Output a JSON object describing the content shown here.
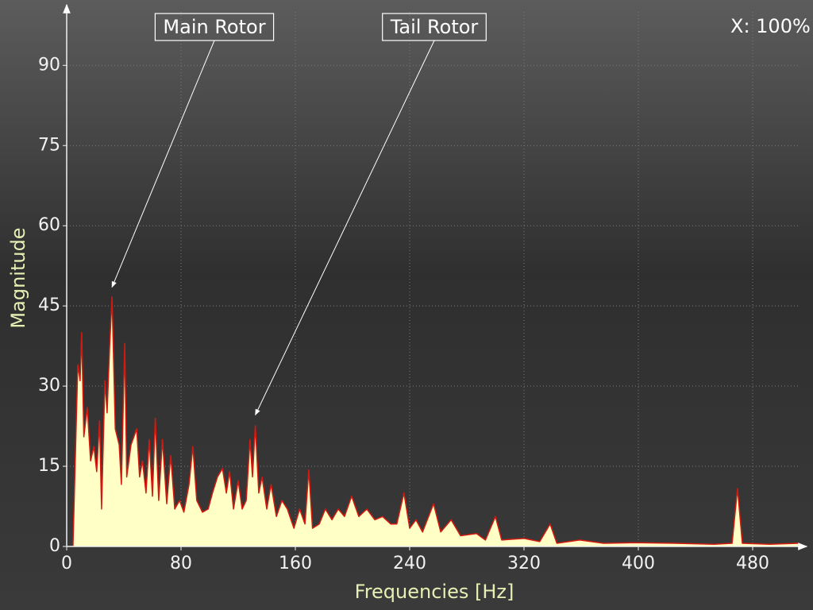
{
  "chart_data": {
    "type": "area",
    "x_label": "Frequencies [Hz]",
    "y_label": "Magnitude",
    "zoom_label": "X: 100%",
    "xlim": [
      0,
      512
    ],
    "ylim": [
      0,
      100
    ],
    "xticks": [
      0,
      80,
      160,
      240,
      320,
      400,
      480
    ],
    "yticks": [
      0,
      15,
      30,
      45,
      60,
      75,
      90
    ],
    "grid": true,
    "color": "#d41a10",
    "fill_color": "#ffffc6",
    "x": [
      4.4,
      7.8,
      9.4,
      10.5,
      12,
      14.4,
      16.7,
      19,
      21,
      23,
      24.4,
      26.7,
      28.3,
      30,
      31.7,
      34,
      36.7,
      38.3,
      40.6,
      42,
      45,
      49,
      51,
      53,
      55.5,
      57.8,
      60,
      62,
      64.4,
      67,
      70,
      72.8,
      75.6,
      79,
      82,
      85.6,
      88.3,
      91,
      95,
      99,
      102,
      105.5,
      109,
      111.7,
      114,
      116.7,
      120,
      122.8,
      125.6,
      128.3,
      130,
      132,
      134.4,
      136.7,
      140,
      143,
      146.7,
      150.6,
      154.4,
      159,
      163,
      166.7,
      169.4,
      172,
      176.7,
      181,
      185.6,
      190,
      194.4,
      199.4,
      204.4,
      210,
      215.6,
      221,
      226.7,
      231,
      236,
      240,
      244.4,
      249,
      256.7,
      261.7,
      269,
      275.6,
      286.7,
      293,
      300,
      304.4,
      320,
      331,
      338.3,
      343,
      359,
      375.6,
      397.8,
      425.6,
      453,
      465.6,
      469.4,
      472.8,
      492,
      511.7
    ],
    "values": [
      0,
      34,
      31,
      40,
      20.5,
      26,
      16,
      18.7,
      14,
      23.5,
      7,
      31,
      25,
      37,
      46.7,
      22,
      19,
      11.6,
      38,
      13,
      19,
      22,
      13,
      16,
      10,
      20,
      9.4,
      24,
      8.6,
      20,
      8,
      17,
      7,
      8.6,
      6.4,
      11.6,
      18.7,
      8.6,
      6.4,
      7,
      10,
      13,
      14.6,
      10,
      14,
      7,
      12.3,
      7,
      8.6,
      20,
      13,
      22.6,
      10,
      13,
      7,
      11.6,
      5.6,
      8.6,
      7,
      3.4,
      7,
      4.2,
      14.3,
      3.4,
      4.2,
      7,
      5,
      7,
      5.6,
      9.4,
      5.6,
      7,
      5,
      5.6,
      4.2,
      4.2,
      10,
      3.4,
      5,
      2.7,
      8,
      2.7,
      5,
      2,
      2.4,
      1.2,
      5.6,
      1.2,
      1.5,
      0.9,
      4.2,
      0.6,
      1.2,
      0.6,
      0.7,
      0.6,
      0.4,
      0.6,
      10.8,
      0.6,
      0.4,
      0.6
    ],
    "annotations": [
      {
        "text": "Main Rotor",
        "x": 31.7,
        "y": 48.5
      },
      {
        "text": "Tail Rotor",
        "x": 132,
        "y": 24.6
      }
    ]
  }
}
